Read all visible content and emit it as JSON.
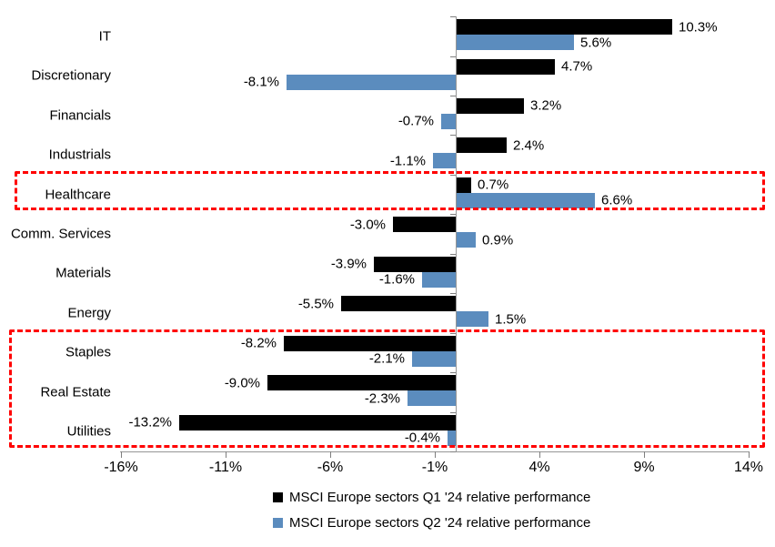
{
  "chart_data": {
    "type": "bar",
    "orientation": "horizontal",
    "title": "",
    "categories": [
      "IT",
      "Discretionary",
      "Financials",
      "Industrials",
      "Healthcare",
      "Comm. Services",
      "Materials",
      "Energy",
      "Staples",
      "Real Estate",
      "Utilities"
    ],
    "series": [
      {
        "name": "MSCI Europe sectors Q1 '24 relative performance",
        "color": "#000000",
        "values": [
          10.3,
          4.7,
          3.2,
          2.4,
          0.7,
          -3.0,
          -3.9,
          -5.5,
          -8.2,
          -9.0,
          -13.2
        ]
      },
      {
        "name": "MSCI Europe sectors Q2 '24 relative performance",
        "color": "#5B8CBE",
        "values": [
          5.6,
          -8.1,
          -0.7,
          -1.1,
          6.6,
          0.9,
          -1.6,
          1.5,
          -2.1,
          -2.3,
          -0.4
        ]
      }
    ],
    "value_labels_shown": true,
    "value_label_format": "one-decimal-percent",
    "x_ticks": [
      -16,
      -11,
      -6,
      -1,
      4,
      9,
      14
    ],
    "x_tick_labels": [
      "-16%",
      "-11%",
      "-6%",
      "-1%",
      "4%",
      "9%",
      "14%"
    ],
    "xlim": [
      -16,
      14
    ],
    "grid": false,
    "legend_position": "bottom",
    "highlights": [
      {
        "style": "red-dashed-box",
        "categories": [
          "Healthcare"
        ]
      },
      {
        "style": "red-dashed-box",
        "categories": [
          "Staples",
          "Real Estate",
          "Utilities"
        ]
      }
    ]
  },
  "legend": {
    "q1": "MSCI Europe sectors Q1 '24 relative performance",
    "q2": "MSCI Europe sectors Q2 '24 relative performance"
  },
  "colors": {
    "q1_series": "#000000",
    "q2_series": "#5B8CBE",
    "highlight_box": "#FF0000",
    "axis": "#969696",
    "text": "#000000"
  }
}
